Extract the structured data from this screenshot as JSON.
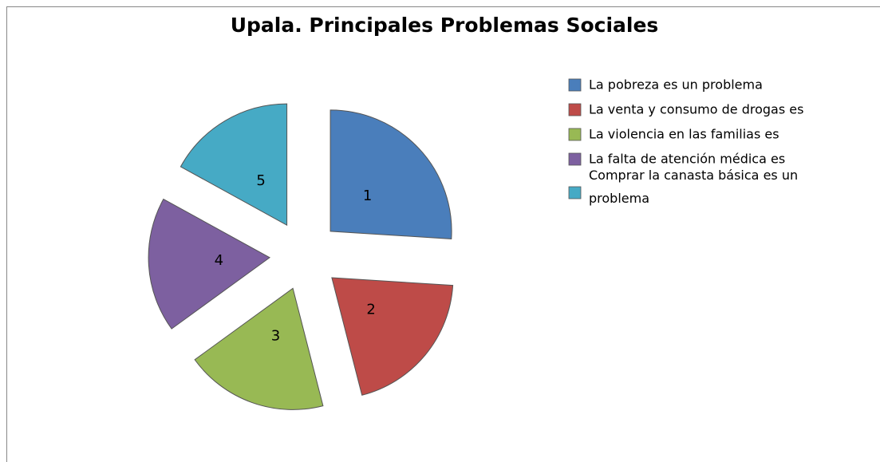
{
  "chart_data": {
    "type": "pie",
    "title": "Upala. Principales Problemas  Sociales",
    "categories": [
      "La pobreza es un problema",
      "La venta y consumo de drogas es",
      "La violencia en las familias es",
      "La falta de atención médica es",
      "Comprar la canasta básica es un problema"
    ],
    "values": [
      26,
      20,
      19,
      18,
      17
    ],
    "slice_labels": [
      "1",
      "2",
      "3",
      "4",
      "5"
    ],
    "colors": [
      "#4a7ebb",
      "#be4b48",
      "#98b954",
      "#7d60a0",
      "#46aac5"
    ],
    "legend": "right"
  }
}
